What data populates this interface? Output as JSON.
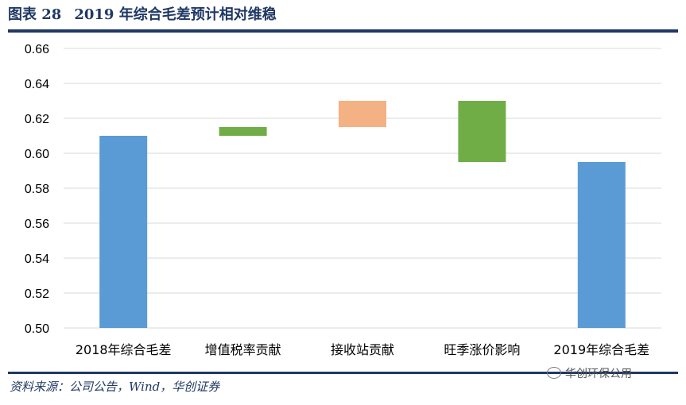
{
  "header": {
    "figure_label": "图表 28",
    "title": "2019 年综合毛差预计相对维稳"
  },
  "footer": {
    "source": "资料来源：公司公告，Wind，华创证券",
    "watermark": "华创环保公用"
  },
  "colors": {
    "accent": "#1F3864",
    "bar_total": "#5B9BD5",
    "bar_increase": "#70AD47",
    "bar_receive": "#F4B183",
    "grid": "#D9D9D9"
  },
  "chart_data": {
    "type": "bar",
    "subtype": "waterfall",
    "title": "2019 年综合毛差预计相对维稳",
    "xlabel": "",
    "ylabel": "",
    "ylim": [
      0.5,
      0.66
    ],
    "yticks": [
      "0.50",
      "0.52",
      "0.54",
      "0.56",
      "0.58",
      "0.60",
      "0.62",
      "0.64",
      "0.66"
    ],
    "grid": true,
    "legend": "none",
    "categories": [
      "2018年综合毛差",
      "增值税率贡献",
      "接收站贡献",
      "旺季涨价影响",
      "2019年综合毛差"
    ],
    "bars": [
      {
        "category": "2018年综合毛差",
        "low": 0.5,
        "high": 0.61,
        "kind": "total",
        "color": "#5B9BD5"
      },
      {
        "category": "增值税率贡献",
        "low": 0.61,
        "high": 0.615,
        "kind": "change",
        "color": "#70AD47"
      },
      {
        "category": "接收站贡献",
        "low": 0.615,
        "high": 0.63,
        "kind": "change",
        "color": "#F4B183"
      },
      {
        "category": "旺季涨价影响",
        "low": 0.595,
        "high": 0.63,
        "kind": "change",
        "color": "#70AD47"
      },
      {
        "category": "2019年综合毛差",
        "low": 0.5,
        "high": 0.595,
        "kind": "total",
        "color": "#5B9BD5"
      }
    ]
  }
}
